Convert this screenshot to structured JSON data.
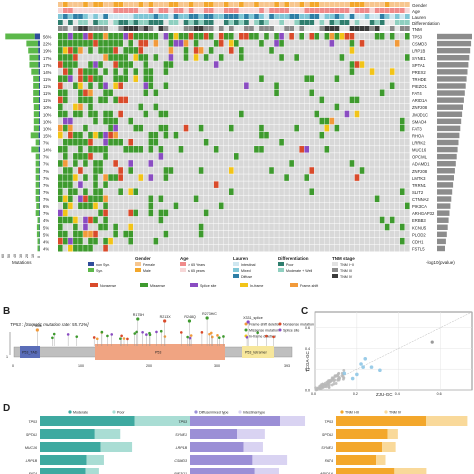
{
  "panels": {
    "b_label": "B",
    "c_label": "C",
    "d_label": "D"
  },
  "panel_a": {
    "track_labels": [
      "Gender",
      "Age",
      "Lauren",
      "Differentiation",
      "TNM"
    ],
    "gene_rows": [
      {
        "gene": "TP53",
        "pct": "56%"
      },
      {
        "gene": "CSMD3",
        "pct": "22%"
      },
      {
        "gene": "LRP1B",
        "pct": "19%"
      },
      {
        "gene": "SYNE1",
        "pct": "17%"
      },
      {
        "gene": "SPTA1",
        "pct": "17%"
      },
      {
        "gene": "PREX2",
        "pct": "14%"
      },
      {
        "gene": "TRHDE",
        "pct": "11%"
      },
      {
        "gene": "PIEZO1",
        "pct": "11%"
      },
      {
        "gene": "FAT4",
        "pct": "11%"
      },
      {
        "gene": "ARID1A",
        "pct": "11%"
      },
      {
        "gene": "ZNF208",
        "pct": "10%"
      },
      {
        "gene": "JMJD1C",
        "pct": "10%"
      },
      {
        "gene": "SMAD4",
        "pct": "10%"
      },
      {
        "gene": "FAT3",
        "pct": "10%"
      },
      {
        "gene": "RHOA",
        "pct": "15%"
      },
      {
        "gene": "LRRK2",
        "pct": "7%"
      },
      {
        "gene": "MUC16",
        "pct": "14%"
      },
      {
        "gene": "OPCML",
        "pct": "7%"
      },
      {
        "gene": "ADAMD1",
        "pct": "7%"
      },
      {
        "gene": "ZNF208",
        "pct": "7%"
      },
      {
        "gene": "LMTK3",
        "pct": "7%"
      },
      {
        "gene": "TRRN1",
        "pct": "7%"
      },
      {
        "gene": "SLIT2",
        "pct": "7%"
      },
      {
        "gene": "CTNNA2",
        "pct": "7%"
      },
      {
        "gene": "PIK3CA",
        "pct": "6%"
      },
      {
        "gene": "ARHGAP32",
        "pct": "7%"
      },
      {
        "gene": "ERBB3",
        "pct": "4%"
      },
      {
        "gene": "KCNU5",
        "pct": "5%"
      },
      {
        "gene": "PLOD2",
        "pct": "5%"
      },
      {
        "gene": "CDH1",
        "pct": "4%"
      },
      {
        "gene": "FSTL5",
        "pct": "4%"
      }
    ],
    "axis_left": "Mutations",
    "axis_right": "-log10(pvalue)",
    "left_ticks": [
      "60",
      "50",
      "40",
      "30",
      "20",
      "10",
      "0"
    ],
    "legend": {
      "mut_types": [
        "non Syn.",
        "Syn."
      ],
      "gender_title": "Gender",
      "gender": [
        "Female",
        "Male"
      ],
      "age_title": "Age",
      "age": [
        "> 65 Years",
        "≤ 65 years"
      ],
      "lauren_title": "Lauren",
      "lauren": [
        "Intestinal",
        "Mixed",
        "Diffuse"
      ],
      "diff_title": "Differentiation",
      "diff": [
        "Poor",
        "Moderate + Well"
      ],
      "tnm_title": "TNM stage",
      "tnm": [
        "TNM I~II",
        "TNM III",
        "TNM IV"
      ],
      "variants": [
        "Nonsense",
        "Missense",
        "Splice site",
        "In-frame",
        "Frame-shift"
      ]
    }
  },
  "panel_b": {
    "title": "TP53 : [Somatic mutation rate: 55.71%]",
    "legend": [
      "Frame-shift deletion",
      "Nonsense mutation",
      "Missense mutation",
      "Splice site",
      "In-frame deletion"
    ],
    "domains": [
      "P53_TAD",
      "P53",
      "P53_tetramer"
    ],
    "muts": [
      "P33fs",
      "R175H",
      "R213X",
      "R248Q",
      "R273H/C",
      "X331_splice"
    ],
    "axis_ticks": [
      "0",
      "100",
      "200",
      "300",
      "393"
    ],
    "y_ticks": [
      "1"
    ]
  },
  "panel_c": {
    "xlabel": "ZJU-GC",
    "ylabel": "TCGA-GC",
    "x_ticks": [
      "0.0",
      "0.2",
      "0.4",
      "0.6"
    ],
    "y_ticks": [
      "0.0",
      "0.2",
      "0.4",
      "0.6"
    ]
  },
  "panel_d": [
    {
      "legend": [
        "Moderate",
        "Poor"
      ],
      "genes": [
        "TP53",
        "SPTA1",
        "MUC16",
        "LRP1B",
        "FAT4"
      ]
    },
    {
      "legend": [
        "Diffuse/mixed type",
        "Intestinal type"
      ],
      "genes": [
        "TP53",
        "SYNE1",
        "LRP1B",
        "CSMD3",
        "PIEZO1"
      ]
    },
    {
      "legend": [
        "TNM I-III",
        "TNM IV"
      ],
      "genes": [
        "TP53",
        "SPTA1",
        "SYNE1",
        "FAT4",
        "ARID1A"
      ]
    }
  ],
  "colors": {
    "missense": "#3e9a2e",
    "nonsense": "#d94a2a",
    "splice": "#8a4cc2",
    "inframe": "#f2c418",
    "frameshift": "#f29a3a",
    "gray": "#d8d8d8",
    "nonsyn": "#2f4d9a",
    "syn": "#5cb84a",
    "teal": "#3ea9a0",
    "purple": "#9b8fd6",
    "orange": "#f3a72b"
  }
}
